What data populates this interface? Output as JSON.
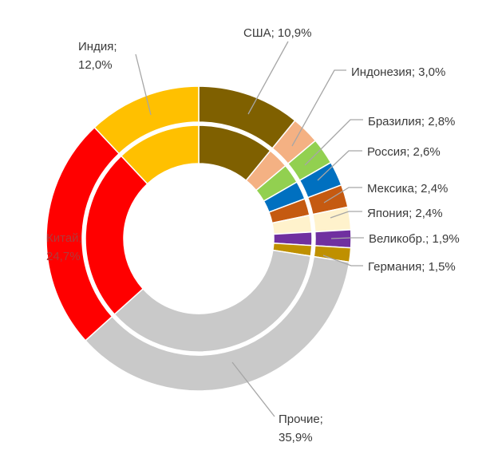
{
  "chart_data": {
    "type": "pie",
    "subtype": "double-donut",
    "title": "",
    "series": [
      {
        "name": "",
        "ring": "outer"
      },
      {
        "name": "",
        "ring": "inner"
      }
    ],
    "categories": [
      "США",
      "Индонезия",
      "Бразилия",
      "Россия",
      "Мексика",
      "Япония",
      "Великобр.",
      "Германия",
      "Прочие",
      "Китай",
      "Индия"
    ],
    "values": [
      10.9,
      3.0,
      2.8,
      2.6,
      2.4,
      2.4,
      1.9,
      1.5,
      35.9,
      24.7,
      12.0
    ],
    "colors": [
      "#7f6000",
      "#f4b183",
      "#92d050",
      "#0070c0",
      "#c55a11",
      "#fff2cc",
      "#7030a0",
      "#bf9000",
      "#c9c9c9",
      "#ff0000",
      "#ffc000"
    ],
    "labels": [
      {
        "name": "США",
        "text": "10,9%"
      },
      {
        "name": "Индонезия",
        "text": "3,0%"
      },
      {
        "name": "Бразилия",
        "text": "2,8%"
      },
      {
        "name": "Россия",
        "text": "2,6%"
      },
      {
        "name": "Мексика",
        "text": "2,4%"
      },
      {
        "name": "Япония",
        "text": "2,4%"
      },
      {
        "name": "Великобр.",
        "text": "1,9%"
      },
      {
        "name": "Германия",
        "text": "1,5%"
      },
      {
        "name": "Прочие",
        "text": "35,9%"
      },
      {
        "name": "Китай",
        "text": "24,7%"
      },
      {
        "name": "Индия",
        "text": "12,0%"
      }
    ],
    "legend": "none"
  }
}
